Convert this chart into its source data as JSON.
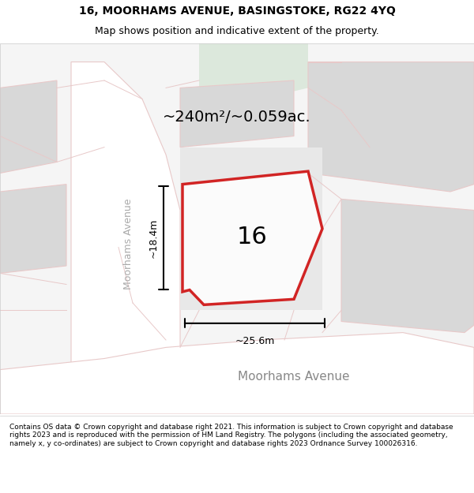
{
  "title_line1": "16, MOORHAMS AVENUE, BASINGSTOKE, RG22 4YQ",
  "title_line2": "Map shows position and indicative extent of the property.",
  "footer_text": "Contains OS data © Crown copyright and database right 2021. This information is subject to Crown copyright and database rights 2023 and is reproduced with the permission of HM Land Registry. The polygons (including the associated geometry, namely x, y co-ordinates) are subject to Crown copyright and database rights 2023 Ordnance Survey 100026316.",
  "area_text": "~240m²/~0.059ac.",
  "width_text": "~25.6m",
  "height_text": "~18.4m",
  "house_number": "16",
  "street_label": "Moorhams Avenue",
  "avenue_label_rotated": "Moorhams Avenue",
  "map_bg": "#f5f5f5",
  "road_color": "#ffffff",
  "road_outline_color": "#e8c9c9",
  "building_color": "#d8d8d8",
  "green_area_color": "#dce8dc",
  "property_fill": "#ffffff",
  "property_outline": "#cc0000",
  "property_fill_alpha": 0.0,
  "dim_line_color": "#000000",
  "title_fontsize": 10,
  "subtitle_fontsize": 9,
  "footer_fontsize": 6.5,
  "area_fontsize": 14,
  "house_number_fontsize": 22,
  "street_label_fontsize": 11
}
